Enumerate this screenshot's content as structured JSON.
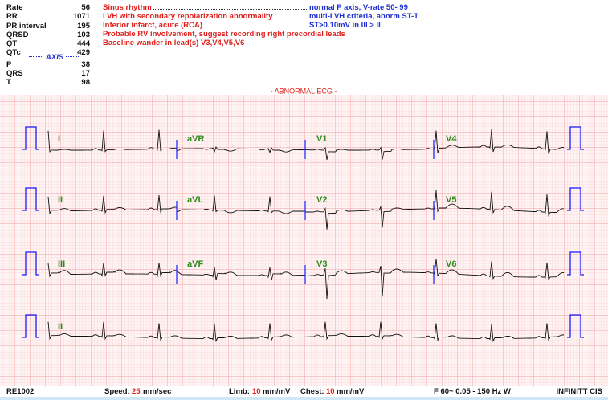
{
  "measurements": [
    {
      "label": "Rate",
      "value": 56
    },
    {
      "label": "RR",
      "value": 1071
    },
    {
      "label": "PR interval",
      "value": 195
    },
    {
      "label": "QRSD",
      "value": 103
    },
    {
      "label": "QT",
      "value": 444
    },
    {
      "label": "QTc",
      "value": 429
    }
  ],
  "axis": {
    "title": "AXIS",
    "items": [
      {
        "label": "P",
        "value": 38
      },
      {
        "label": "QRS",
        "value": 17
      },
      {
        "label": "T",
        "value": 98
      }
    ]
  },
  "interpretations": [
    {
      "statement": "Sinus rhythm",
      "detail": "normal P axis, V-rate  50- 99"
    },
    {
      "statement": "LVH with secondary repolarization abnormality",
      "detail": "multi-LVH criteria, abnrm ST-T"
    },
    {
      "statement": "Inferior infarct, acute (RCA)",
      "detail": "ST>0.10mV in III > II"
    },
    {
      "statement": "Probable RV involvement, suggest recording right precordial leads"
    },
    {
      "statement": "Baseline wander in lead(s) V3,V4,V5,V6"
    }
  ],
  "banner": "- ABNORMAL ECG -",
  "leads": [
    [
      "I",
      "aVR",
      "V1",
      "V4"
    ],
    [
      "II",
      "aVL",
      "V2",
      "V5"
    ],
    [
      "III",
      "aVF",
      "V3",
      "V6"
    ],
    [
      "II"
    ]
  ],
  "footer": {
    "device": "RE1002",
    "speed": {
      "label": "Speed:",
      "value": "25",
      "unit": "mm/sec"
    },
    "limb": {
      "label": "Limb:",
      "value": "10",
      "unit": "mm/mV"
    },
    "chest": {
      "label": "Chest:",
      "value": "10",
      "unit": "mm/mV"
    },
    "filter": "F 60~  0.05 - 150 Hz W",
    "vendor": "INFINITT CIS"
  }
}
